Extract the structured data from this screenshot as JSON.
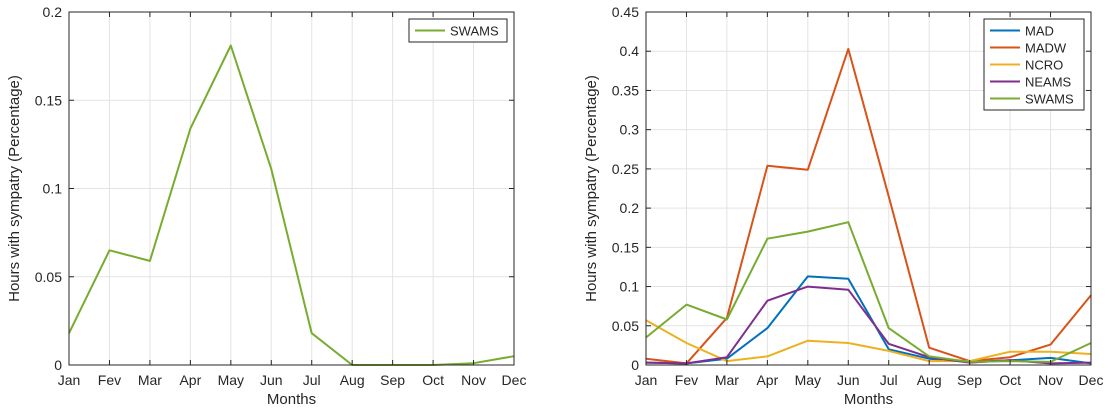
{
  "chart_data": [
    {
      "type": "line",
      "categories": [
        "Jan",
        "Fev",
        "Mar",
        "Apr",
        "May",
        "Jun",
        "Jul",
        "Aug",
        "Sep",
        "Oct",
        "Nov",
        "Dec"
      ],
      "xlabel": "Months",
      "ylabel": "Hours with sympatry (Percentage)",
      "ylim": [
        0,
        0.2
      ],
      "yticks": [
        0,
        0.05,
        0.1,
        0.15,
        0.2
      ],
      "ytick_labels": [
        "0",
        "0.05",
        "0.1",
        "0.15",
        "0.2"
      ],
      "grid": true,
      "legend_position": "top-right",
      "series": [
        {
          "name": "SWAMS",
          "color": "#77ac30",
          "values": [
            0.018,
            0.065,
            0.059,
            0.134,
            0.181,
            0.111,
            0.018,
            0.0,
            0.0,
            0.0,
            0.001,
            0.005
          ]
        }
      ]
    },
    {
      "type": "line",
      "categories": [
        "Jan",
        "Fev",
        "Mar",
        "Apr",
        "May",
        "Jun",
        "Jul",
        "Aug",
        "Sep",
        "Oct",
        "Nov",
        "Dec"
      ],
      "xlabel": "Months",
      "ylabel": "Hours with sympatry (Percentage)",
      "ylim": [
        0,
        0.45
      ],
      "yticks": [
        0,
        0.05,
        0.1,
        0.15,
        0.2,
        0.25,
        0.3,
        0.35,
        0.4,
        0.45
      ],
      "ytick_labels": [
        "0",
        "0.05",
        "0.1",
        "0.15",
        "0.2",
        "0.25",
        "0.3",
        "0.35",
        "0.4",
        "0.45"
      ],
      "grid": true,
      "legend_position": "top-right",
      "series": [
        {
          "name": "MAD",
          "color": "#0072bd",
          "values": [
            0.003,
            0.002,
            0.008,
            0.047,
            0.113,
            0.11,
            0.02,
            0.008,
            0.004,
            0.006,
            0.009,
            0.002
          ]
        },
        {
          "name": "MADW",
          "color": "#d95319",
          "values": [
            0.008,
            0.002,
            0.06,
            0.254,
            0.249,
            0.403,
            0.215,
            0.022,
            0.005,
            0.01,
            0.026,
            0.089
          ]
        },
        {
          "name": "NCRO",
          "color": "#edb120",
          "values": [
            0.057,
            0.028,
            0.005,
            0.011,
            0.031,
            0.028,
            0.018,
            0.005,
            0.005,
            0.017,
            0.017,
            0.014
          ]
        },
        {
          "name": "NEAMS",
          "color": "#7e2f8e",
          "values": [
            0.003,
            0.002,
            0.01,
            0.082,
            0.1,
            0.096,
            0.027,
            0.01,
            0.003,
            0.006,
            0.002,
            0.003
          ]
        },
        {
          "name": "SWAMS",
          "color": "#77ac30",
          "values": [
            0.035,
            0.077,
            0.058,
            0.161,
            0.17,
            0.182,
            0.047,
            0.011,
            0.004,
            0.005,
            0.004,
            0.028
          ]
        }
      ]
    }
  ]
}
